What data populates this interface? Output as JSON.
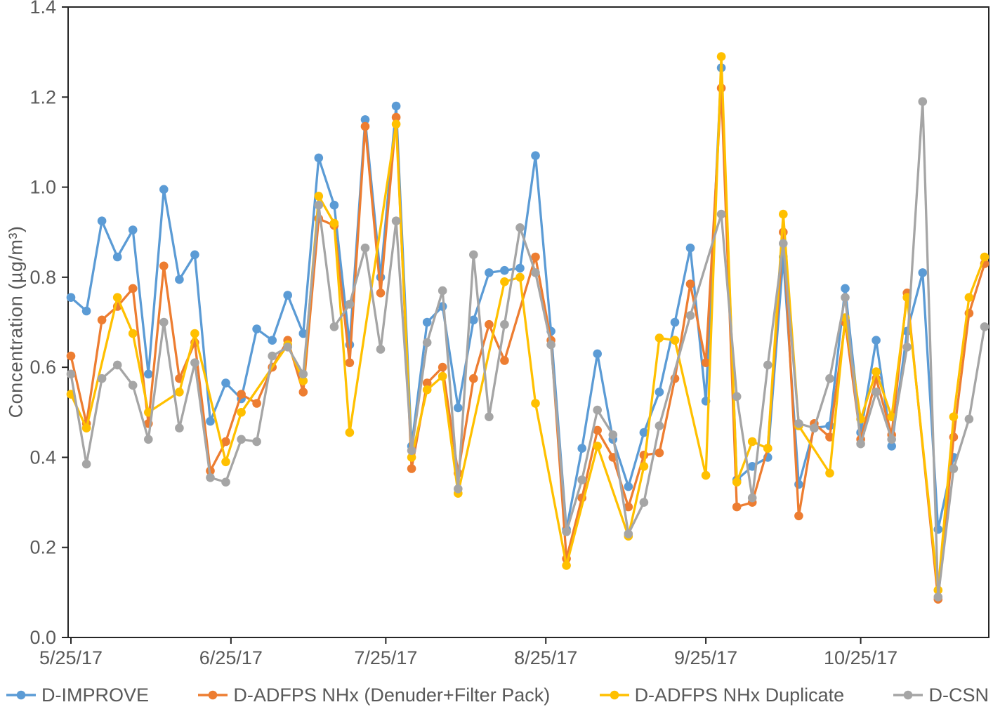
{
  "chart_data": {
    "type": "line",
    "title": "",
    "xlabel": "",
    "ylabel": "Concentration (µg/m³)",
    "ylim": [
      0.0,
      1.4
    ],
    "yticks": [
      0.0,
      0.2,
      0.4,
      0.6,
      0.8,
      1.0,
      1.2,
      1.4
    ],
    "ytick_labels": [
      "0.0",
      "0.2",
      "0.4",
      "0.6",
      "0.8",
      "1.0",
      "1.2",
      "1.4"
    ],
    "grid": false,
    "plot_border": true,
    "legend_position": "bottom",
    "axis_color": "#262626",
    "label_color": "#595959",
    "background_color": "#FFFFFF",
    "sample_interval_days": 3,
    "xticks": [
      {
        "label": "5/25/17",
        "day": 0
      },
      {
        "label": "6/25/17",
        "day": 31
      },
      {
        "label": "7/25/17",
        "day": 61
      },
      {
        "label": "8/25/17",
        "day": 92
      },
      {
        "label": "9/25/17",
        "day": 123
      },
      {
        "label": "10/25/17",
        "day": 153
      }
    ],
    "x_dates": [
      "5/25/17",
      "5/28/17",
      "5/31/17",
      "6/3/17",
      "6/6/17",
      "6/9/17",
      "6/12/17",
      "6/15/17",
      "6/18/17",
      "6/21/17",
      "6/24/17",
      "6/27/17",
      "6/30/17",
      "7/3/17",
      "7/6/17",
      "7/9/17",
      "7/12/17",
      "7/15/17",
      "7/18/17",
      "7/21/17",
      "7/24/17",
      "7/27/17",
      "7/30/17",
      "8/2/17",
      "8/5/17",
      "8/8/17",
      "8/11/17",
      "8/14/17",
      "8/17/17",
      "8/20/17",
      "8/23/17",
      "8/26/17",
      "8/29/17",
      "9/1/17",
      "9/4/17",
      "9/7/17",
      "9/10/17",
      "9/13/17",
      "9/16/17",
      "9/19/17",
      "9/22/17",
      "9/25/17",
      "9/28/17",
      "10/1/17",
      "10/4/17",
      "10/7/17",
      "10/10/17",
      "10/13/17",
      "10/16/17",
      "10/19/17",
      "10/22/17",
      "10/25/17",
      "10/28/17",
      "10/31/17",
      "11/3/17",
      "11/6/17",
      "11/9/17",
      "11/12/17",
      "11/15/17",
      "11/18/17"
    ],
    "series": [
      {
        "name": "D-IMPROVE",
        "color": "#5B9BD5",
        "values": [
          0.755,
          0.725,
          0.925,
          0.845,
          0.905,
          0.585,
          0.995,
          0.795,
          0.85,
          0.48,
          0.565,
          0.53,
          0.685,
          0.66,
          0.76,
          0.675,
          1.065,
          0.96,
          0.65,
          1.15,
          0.8,
          1.18,
          0.425,
          0.7,
          0.735,
          0.51,
          0.705,
          0.81,
          0.815,
          0.82,
          1.07,
          0.68,
          0.24,
          0.42,
          0.63,
          0.44,
          0.335,
          0.455,
          0.545,
          0.7,
          0.865,
          0.525,
          1.265,
          0.35,
          0.38,
          0.4,
          0.845,
          0.34,
          0.465,
          0.47,
          0.775,
          0.455,
          0.66,
          0.425,
          0.68,
          0.81,
          0.24,
          0.4,
          null,
          null
        ]
      },
      {
        "name": "D-ADFPS NHx (Denuder+Filter Pack)",
        "color": "#ED7D31",
        "values": [
          0.625,
          0.475,
          0.705,
          0.735,
          0.775,
          0.475,
          0.825,
          0.575,
          0.655,
          0.37,
          0.435,
          0.54,
          0.52,
          0.6,
          0.66,
          0.545,
          0.93,
          0.915,
          0.61,
          1.135,
          0.765,
          1.155,
          0.375,
          0.565,
          0.6,
          0.365,
          0.575,
          0.695,
          0.615,
          null,
          0.845,
          0.66,
          0.175,
          0.31,
          0.46,
          0.4,
          0.29,
          0.405,
          0.41,
          0.575,
          0.785,
          0.61,
          1.22,
          0.29,
          0.3,
          0.42,
          0.9,
          0.27,
          0.475,
          0.445,
          0.7,
          0.44,
          0.575,
          0.45,
          0.765,
          null,
          0.085,
          0.445,
          0.72,
          0.83
        ]
      },
      {
        "name": "D-ADFPS NHx Duplicate",
        "color": "#FFC000",
        "values": [
          0.54,
          0.465,
          null,
          0.755,
          0.675,
          0.5,
          null,
          0.545,
          0.675,
          null,
          0.39,
          0.5,
          null,
          null,
          0.65,
          0.57,
          0.98,
          0.92,
          0.455,
          null,
          null,
          1.14,
          0.4,
          0.55,
          0.58,
          0.32,
          null,
          null,
          0.79,
          0.8,
          0.52,
          null,
          0.16,
          null,
          0.425,
          null,
          0.225,
          0.38,
          0.665,
          0.66,
          null,
          0.36,
          1.29,
          0.345,
          0.435,
          0.42,
          0.94,
          0.47,
          null,
          0.365,
          0.71,
          0.485,
          0.59,
          0.49,
          0.755,
          null,
          0.105,
          0.49,
          0.755,
          0.845
        ]
      },
      {
        "name": "D-CSN",
        "color": "#A5A5A5",
        "values": [
          0.585,
          0.385,
          0.575,
          0.605,
          0.56,
          0.44,
          0.7,
          0.465,
          0.61,
          0.355,
          0.345,
          0.44,
          0.435,
          0.625,
          0.645,
          0.585,
          0.96,
          0.69,
          0.74,
          0.865,
          0.64,
          0.925,
          0.415,
          0.655,
          0.77,
          0.33,
          0.85,
          0.49,
          0.695,
          0.91,
          0.81,
          0.65,
          0.235,
          0.35,
          0.505,
          0.45,
          0.23,
          0.3,
          0.47,
          null,
          0.715,
          null,
          0.94,
          0.535,
          0.31,
          0.605,
          0.875,
          0.475,
          0.465,
          0.575,
          0.755,
          0.43,
          0.545,
          0.44,
          0.645,
          1.19,
          0.09,
          0.375,
          0.485,
          0.69
        ]
      }
    ]
  }
}
